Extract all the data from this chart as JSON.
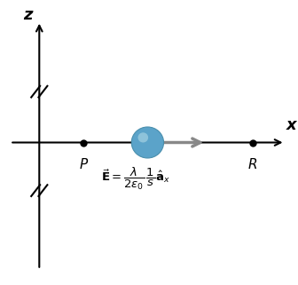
{
  "figsize": [
    3.36,
    3.21
  ],
  "dpi": 100,
  "bg_color": "#ffffff",
  "axis_color": "#000000",
  "z_label": "z",
  "x_label": "x",
  "point_P_label": "P",
  "point_R_label": "R",
  "sphere_color": "#5ba3c9",
  "sphere_highlight_color": "#a0cfe0",
  "arrow_color": "#888888",
  "eq_color": "#000000"
}
